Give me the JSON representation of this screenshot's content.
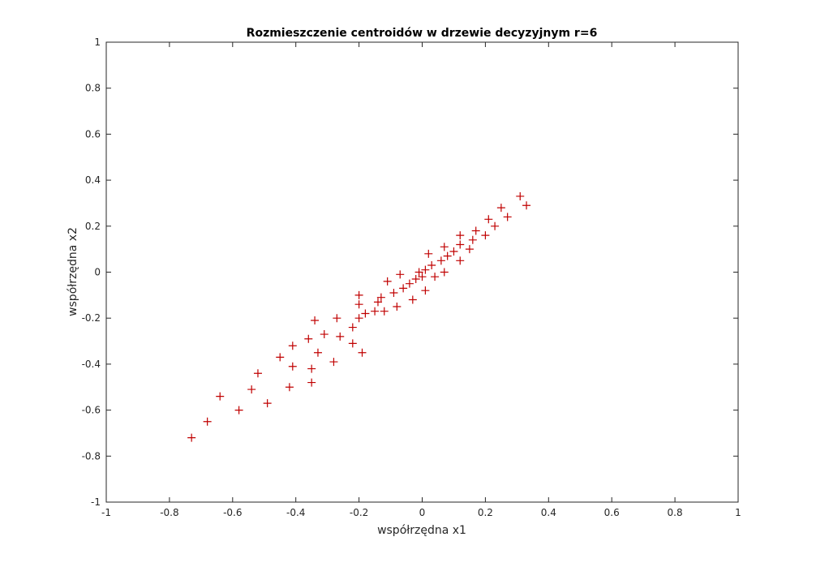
{
  "colors": {
    "background": "#ffffff",
    "axes": "#262626",
    "marker": "#c00000"
  },
  "chart_data": {
    "type": "scatter",
    "title": "Rozmieszczenie centroidów w drzewie decyzyjnym r=6",
    "xlabel": "współrzędna x1",
    "ylabel": "współrzędna x2",
    "xlim": [
      -1,
      1
    ],
    "ylim": [
      -1,
      1
    ],
    "xticks": [
      -1,
      -0.8,
      -0.6,
      -0.4,
      -0.2,
      0,
      0.2,
      0.4,
      0.6,
      0.8,
      1
    ],
    "yticks": [
      -1,
      -0.8,
      -0.6,
      -0.4,
      -0.2,
      0,
      0.2,
      0.4,
      0.6,
      0.8,
      1
    ],
    "xtick_labels": [
      "-1",
      "-0.8",
      "-0.6",
      "-0.4",
      "-0.2",
      "0",
      "0.2",
      "0.4",
      "0.6",
      "0.8",
      "1"
    ],
    "ytick_labels": [
      "-1",
      "-0.8",
      "-0.6",
      "-0.4",
      "-0.2",
      "0",
      "0.2",
      "0.4",
      "0.6",
      "0.8",
      "1"
    ],
    "grid": false,
    "marker": "+",
    "series": [
      {
        "points": [
          [
            -0.73,
            -0.72
          ],
          [
            -0.68,
            -0.65
          ],
          [
            -0.64,
            -0.54
          ],
          [
            -0.58,
            -0.6
          ],
          [
            -0.54,
            -0.51
          ],
          [
            -0.52,
            -0.44
          ],
          [
            -0.49,
            -0.57
          ],
          [
            -0.45,
            -0.37
          ],
          [
            -0.42,
            -0.5
          ],
          [
            -0.41,
            -0.32
          ],
          [
            -0.41,
            -0.41
          ],
          [
            -0.36,
            -0.29
          ],
          [
            -0.35,
            -0.48
          ],
          [
            -0.35,
            -0.42
          ],
          [
            -0.34,
            -0.21
          ],
          [
            -0.33,
            -0.35
          ],
          [
            -0.31,
            -0.27
          ],
          [
            -0.28,
            -0.39
          ],
          [
            -0.27,
            -0.2
          ],
          [
            -0.26,
            -0.28
          ],
          [
            -0.22,
            -0.24
          ],
          [
            -0.22,
            -0.31
          ],
          [
            -0.2,
            -0.2
          ],
          [
            -0.2,
            -0.14
          ],
          [
            -0.2,
            -0.1
          ],
          [
            -0.19,
            -0.35
          ],
          [
            -0.18,
            -0.18
          ],
          [
            -0.15,
            -0.17
          ],
          [
            -0.14,
            -0.13
          ],
          [
            -0.13,
            -0.11
          ],
          [
            -0.12,
            -0.17
          ],
          [
            -0.11,
            -0.04
          ],
          [
            -0.09,
            -0.09
          ],
          [
            -0.08,
            -0.15
          ],
          [
            -0.07,
            -0.01
          ],
          [
            -0.06,
            -0.07
          ],
          [
            -0.04,
            -0.05
          ],
          [
            -0.03,
            -0.12
          ],
          [
            -0.02,
            -0.03
          ],
          [
            -0.01,
            0.0
          ],
          [
            0.0,
            -0.02
          ],
          [
            0.01,
            -0.08
          ],
          [
            0.01,
            0.01
          ],
          [
            0.02,
            0.08
          ],
          [
            0.03,
            0.03
          ],
          [
            0.04,
            -0.02
          ],
          [
            0.06,
            0.05
          ],
          [
            0.07,
            0.11
          ],
          [
            0.07,
            0.0
          ],
          [
            0.08,
            0.07
          ],
          [
            0.1,
            0.09
          ],
          [
            0.12,
            0.16
          ],
          [
            0.12,
            0.12
          ],
          [
            0.12,
            0.05
          ],
          [
            0.15,
            0.1
          ],
          [
            0.16,
            0.14
          ],
          [
            0.17,
            0.18
          ],
          [
            0.2,
            0.16
          ],
          [
            0.21,
            0.23
          ],
          [
            0.23,
            0.2
          ],
          [
            0.25,
            0.28
          ],
          [
            0.27,
            0.24
          ],
          [
            0.31,
            0.33
          ],
          [
            0.33,
            0.29
          ]
        ]
      }
    ]
  }
}
